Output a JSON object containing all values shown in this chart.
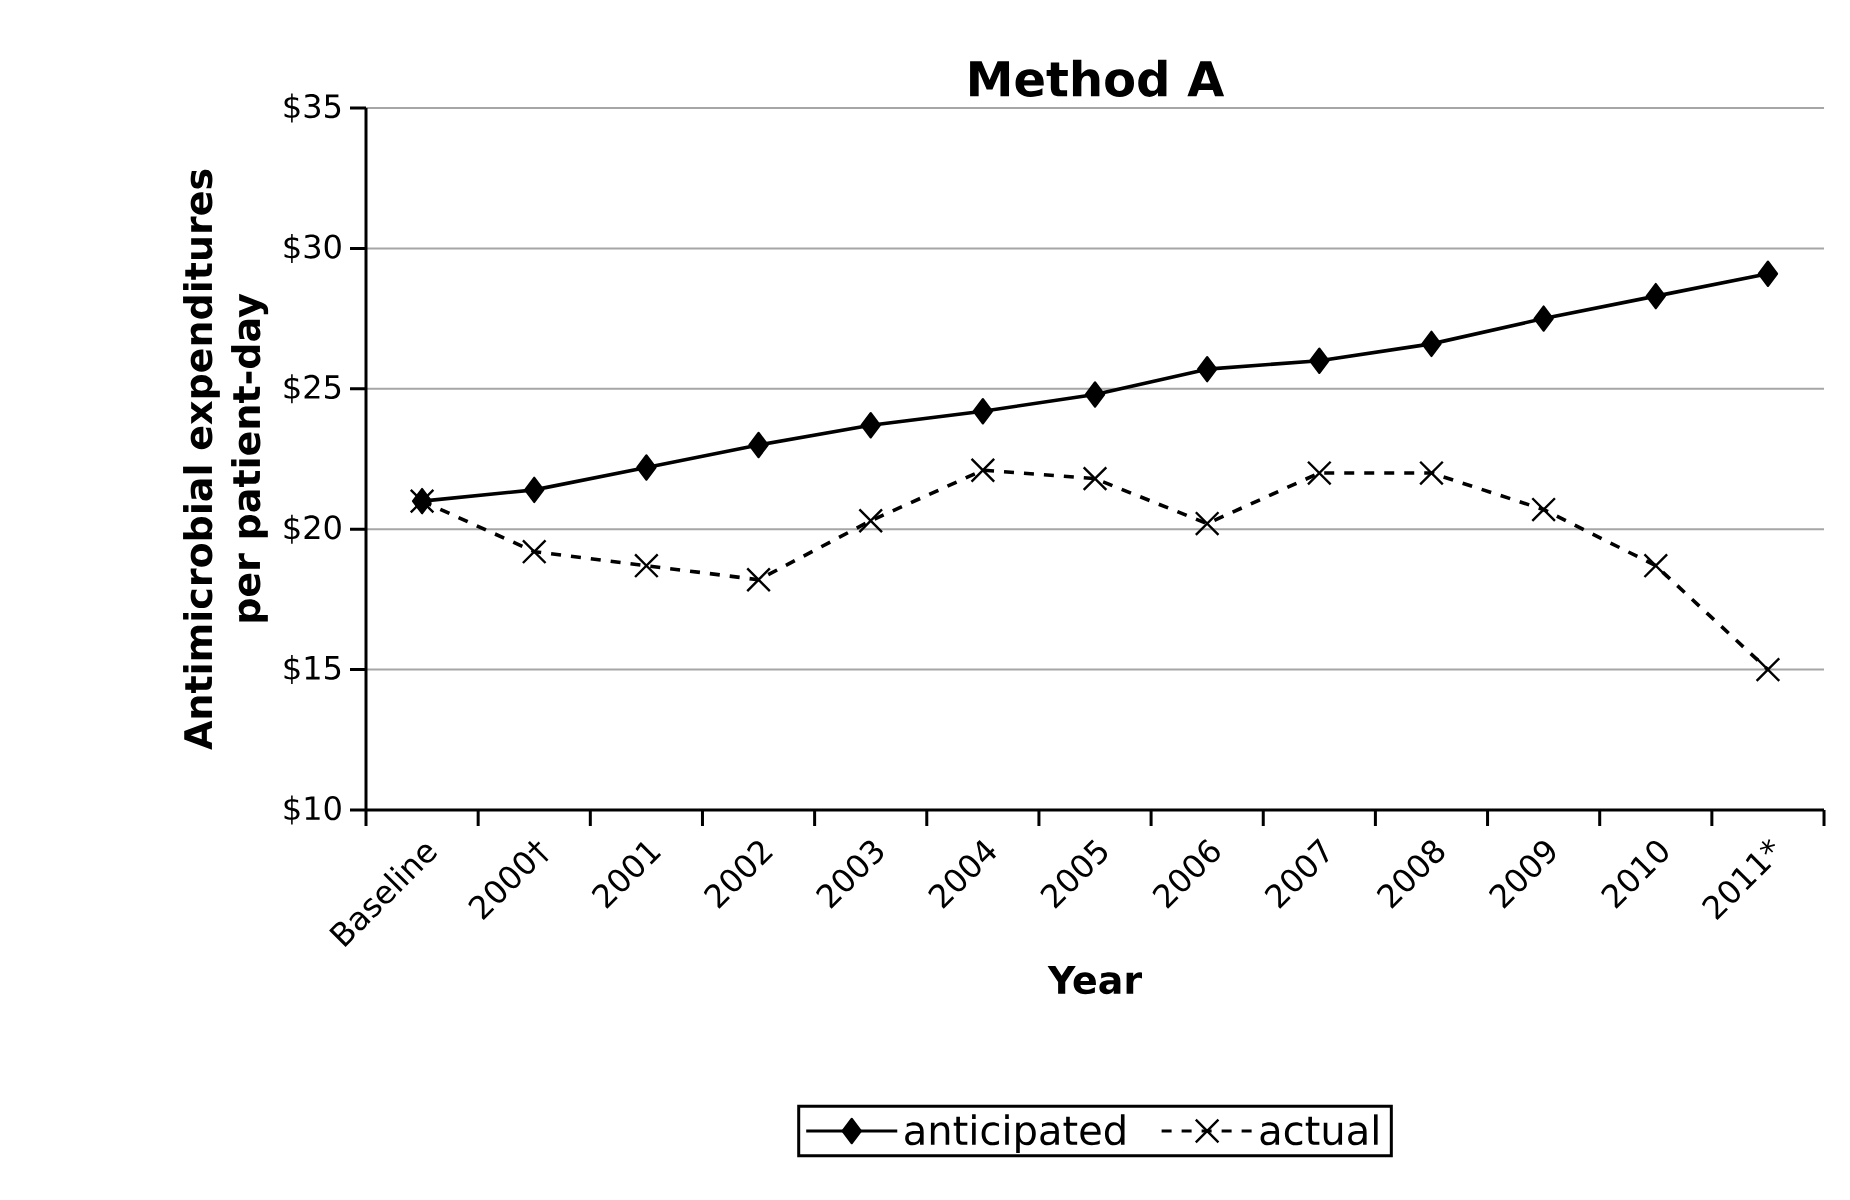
{
  "chart_data": {
    "type": "line",
    "title": "Method A",
    "xlabel": "Year",
    "ylabel": "Antimicrobial expenditures per patient-day",
    "categories": [
      "Baseline",
      "2000†",
      "2001",
      "2002",
      "2003",
      "2004",
      "2005",
      "2006",
      "2007",
      "2008",
      "2009",
      "2010",
      "2011*"
    ],
    "series": [
      {
        "name": "anticipated",
        "color": "#000000",
        "marker": "diamond",
        "line_style": "solid",
        "values": [
          21.0,
          21.4,
          22.2,
          23.0,
          23.7,
          24.2,
          24.8,
          25.7,
          26.0,
          26.6,
          27.5,
          28.3,
          29.1
        ]
      },
      {
        "name": "actual",
        "color": "#000000",
        "marker": "cross",
        "line_style": "dashed",
        "values": [
          21.0,
          19.2,
          18.7,
          18.2,
          20.3,
          22.1,
          21.8,
          20.2,
          22.0,
          22.0,
          20.7,
          18.7,
          15.0
        ]
      }
    ],
    "ylim": [
      10,
      35
    ],
    "yticks": [
      {
        "value": 10,
        "label": "$10"
      },
      {
        "value": 15,
        "label": "$15"
      },
      {
        "value": 20,
        "label": "$20"
      },
      {
        "value": 25,
        "label": "$25"
      },
      {
        "value": 30,
        "label": "$30"
      },
      {
        "value": 35,
        "label": "$35"
      }
    ],
    "grid": "y",
    "legend": "bottom"
  }
}
